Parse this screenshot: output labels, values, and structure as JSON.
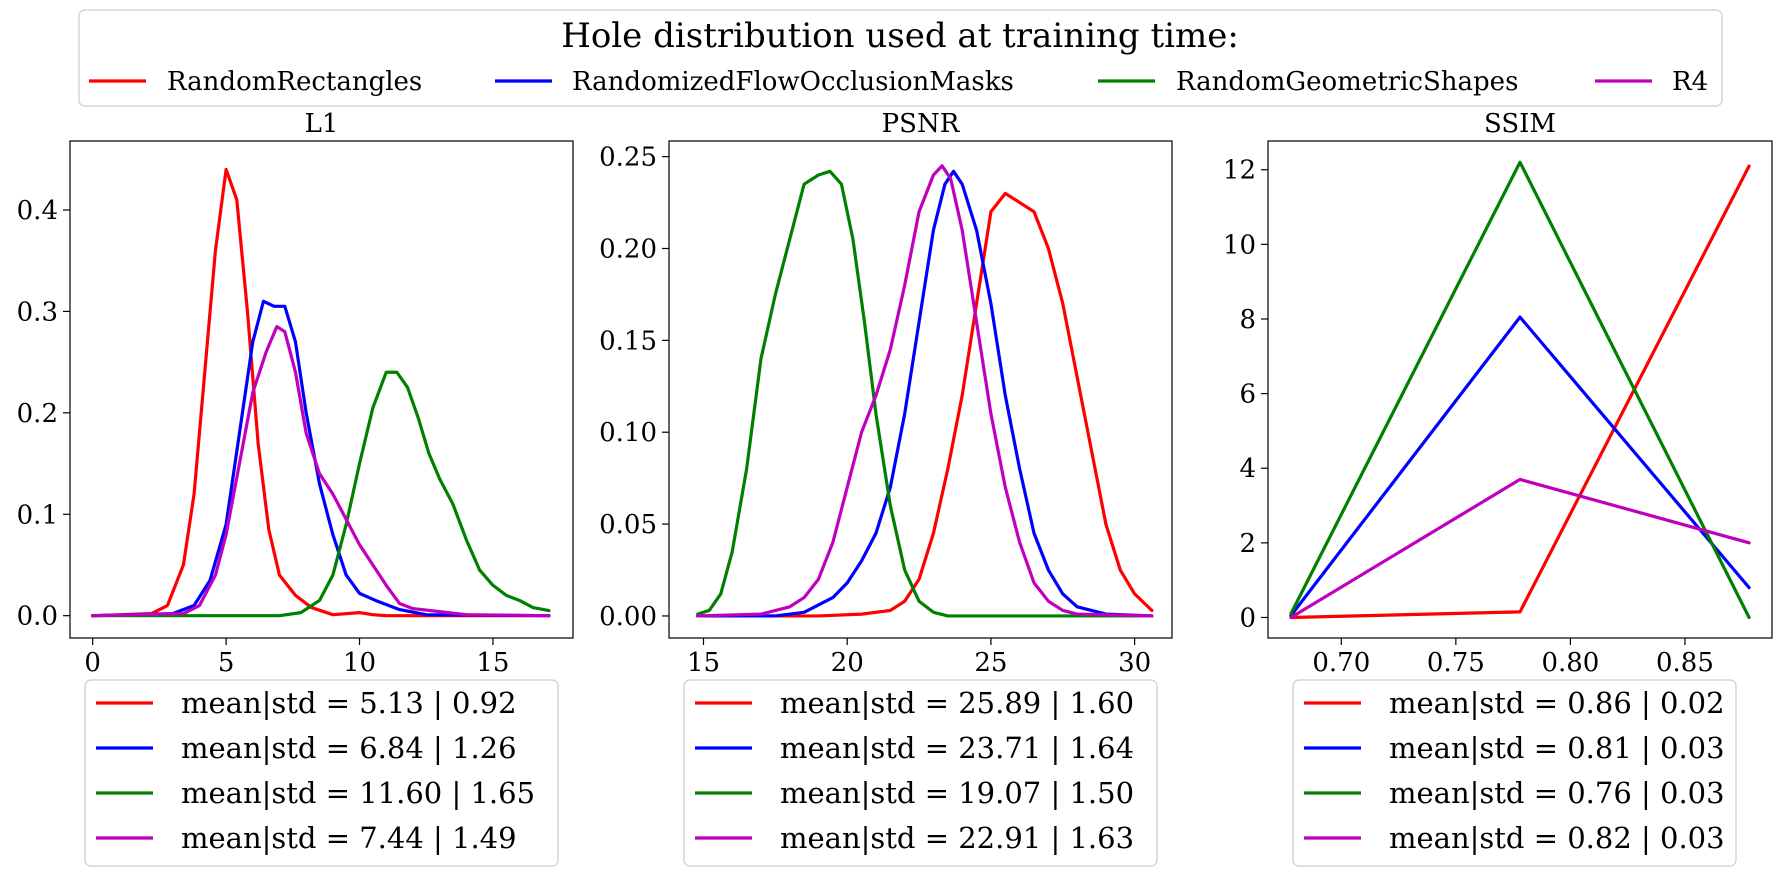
{
  "figure_legend": {
    "title": "Hole distribution used at training time:",
    "entries": [
      {
        "label": "RandomRectangles",
        "color": "#ff0000"
      },
      {
        "label": "RandomizedFlowOcclusionMasks",
        "color": "#0000ff"
      },
      {
        "label": "RandomGeometricShapes",
        "color": "#008000"
      },
      {
        "label": "R4",
        "color": "#bf00bf"
      }
    ]
  },
  "chart_data": [
    {
      "type": "line",
      "title": "L1",
      "xlim": [
        -0.85,
        18.0
      ],
      "ylim": [
        -0.022,
        0.468
      ],
      "xticks": [
        0,
        5,
        10,
        15
      ],
      "xtick_labels": [
        "0",
        "5",
        "10",
        "15"
      ],
      "yticks": [
        0.0,
        0.1,
        0.2,
        0.3,
        0.4
      ],
      "ytick_labels": [
        "0.0",
        "0.1",
        "0.2",
        "0.3",
        "0.4"
      ],
      "series": [
        {
          "name": "RandomRectangles",
          "color": "#ff0000",
          "legend": "mean|std = 5.13 | 0.92",
          "x": [
            0,
            2.2,
            2.8,
            3.4,
            3.8,
            4.2,
            4.6,
            5.0,
            5.4,
            5.8,
            6.2,
            6.6,
            7.0,
            7.6,
            8.2,
            9.0,
            10.0,
            10.5,
            11.0,
            17.1
          ],
          "y": [
            0,
            0.002,
            0.01,
            0.05,
            0.12,
            0.24,
            0.36,
            0.44,
            0.41,
            0.3,
            0.17,
            0.085,
            0.04,
            0.02,
            0.008,
            0.001,
            0.003,
            0.001,
            0,
            0
          ]
        },
        {
          "name": "RandomizedFlowOcclusionMasks",
          "color": "#0000ff",
          "legend": "mean|std = 6.84 | 1.26",
          "x": [
            0,
            3.0,
            3.8,
            4.4,
            5.0,
            5.5,
            6.0,
            6.4,
            6.8,
            7.2,
            7.6,
            8.0,
            8.5,
            9.0,
            9.5,
            10.0,
            10.6,
            11.5,
            12.5,
            17.1
          ],
          "y": [
            0,
            0.002,
            0.01,
            0.035,
            0.09,
            0.18,
            0.27,
            0.31,
            0.305,
            0.305,
            0.27,
            0.2,
            0.13,
            0.08,
            0.04,
            0.022,
            0.015,
            0.006,
            0.001,
            0
          ]
        },
        {
          "name": "RandomGeometricShapes",
          "color": "#008000",
          "legend": "mean|std = 11.60 | 1.65",
          "x": [
            0,
            7.0,
            7.8,
            8.5,
            9.0,
            9.5,
            10.0,
            10.5,
            11.0,
            11.4,
            11.8,
            12.2,
            12.6,
            13.0,
            13.5,
            14.0,
            14.5,
            15.0,
            15.5,
            16.0,
            16.5,
            17.1
          ],
          "y": [
            0,
            0,
            0.003,
            0.015,
            0.04,
            0.09,
            0.15,
            0.205,
            0.24,
            0.24,
            0.225,
            0.195,
            0.16,
            0.135,
            0.11,
            0.075,
            0.045,
            0.03,
            0.02,
            0.015,
            0.008,
            0.005
          ]
        },
        {
          "name": "R4",
          "color": "#bf00bf",
          "legend": "mean|std = 7.44 | 1.49",
          "x": [
            0,
            3.4,
            4.0,
            4.6,
            5.0,
            5.5,
            6.0,
            6.5,
            6.9,
            7.2,
            7.6,
            8.0,
            8.5,
            9.0,
            9.5,
            10.0,
            10.5,
            11.0,
            11.5,
            12.0,
            13.0,
            14.0,
            17.1
          ],
          "y": [
            0,
            0.002,
            0.01,
            0.04,
            0.08,
            0.15,
            0.22,
            0.26,
            0.285,
            0.28,
            0.24,
            0.18,
            0.14,
            0.12,
            0.095,
            0.07,
            0.05,
            0.03,
            0.012,
            0.007,
            0.004,
            0.001,
            0
          ]
        }
      ]
    },
    {
      "type": "line",
      "title": "PSNR",
      "xlim": [
        13.8,
        31.3
      ],
      "ylim": [
        -0.012,
        0.2585
      ],
      "xticks": [
        15,
        20,
        25,
        30
      ],
      "xtick_labels": [
        "15",
        "20",
        "25",
        "30"
      ],
      "yticks": [
        0.0,
        0.05,
        0.1,
        0.15,
        0.2,
        0.25
      ],
      "ytick_labels": [
        "0.00",
        "0.05",
        "0.10",
        "0.15",
        "0.20",
        "0.25"
      ],
      "series": [
        {
          "name": "RandomRectangles",
          "color": "#ff0000",
          "legend": "mean|std = 25.89 | 1.60",
          "x": [
            14.8,
            19.0,
            20.5,
            21.5,
            22.0,
            22.5,
            23.0,
            23.5,
            24.0,
            24.5,
            25.0,
            25.5,
            26.0,
            26.5,
            27.0,
            27.5,
            28.0,
            28.5,
            29.0,
            29.5,
            30.0,
            30.6
          ],
          "y": [
            0,
            0,
            0.001,
            0.003,
            0.008,
            0.02,
            0.045,
            0.08,
            0.12,
            0.17,
            0.22,
            0.23,
            0.225,
            0.22,
            0.2,
            0.17,
            0.13,
            0.09,
            0.05,
            0.025,
            0.012,
            0.003
          ]
        },
        {
          "name": "RandomizedFlowOcclusionMasks",
          "color": "#0000ff",
          "legend": "mean|std = 23.71 | 1.64",
          "x": [
            14.8,
            17.5,
            18.5,
            19.5,
            20.0,
            20.5,
            21.0,
            21.5,
            22.0,
            22.5,
            23.0,
            23.4,
            23.7,
            24.0,
            24.5,
            25.0,
            25.5,
            26.0,
            26.5,
            27.0,
            27.5,
            28.0,
            29.0,
            30.6
          ],
          "y": [
            0,
            0,
            0.002,
            0.01,
            0.018,
            0.03,
            0.045,
            0.07,
            0.11,
            0.16,
            0.21,
            0.235,
            0.242,
            0.235,
            0.21,
            0.17,
            0.12,
            0.08,
            0.045,
            0.025,
            0.012,
            0.005,
            0.001,
            0
          ]
        },
        {
          "name": "RandomGeometricShapes",
          "color": "#008000",
          "legend": "mean|std = 19.07 | 1.50",
          "x": [
            14.8,
            15.2,
            15.6,
            16.0,
            16.5,
            17.0,
            17.5,
            18.0,
            18.5,
            19.0,
            19.4,
            19.8,
            20.2,
            20.6,
            21.0,
            21.5,
            22.0,
            22.5,
            23.0,
            23.5,
            30.6
          ],
          "y": [
            0.001,
            0.003,
            0.012,
            0.035,
            0.08,
            0.14,
            0.175,
            0.205,
            0.235,
            0.24,
            0.242,
            0.235,
            0.205,
            0.16,
            0.11,
            0.06,
            0.025,
            0.008,
            0.002,
            0,
            0
          ]
        },
        {
          "name": "R4",
          "color": "#bf00bf",
          "legend": "mean|std = 22.91 | 1.63",
          "x": [
            14.8,
            17.0,
            18.0,
            18.5,
            19.0,
            19.5,
            20.0,
            20.5,
            21.0,
            21.5,
            22.0,
            22.5,
            23.0,
            23.3,
            23.6,
            24.0,
            24.5,
            25.0,
            25.5,
            26.0,
            26.5,
            27.0,
            27.5,
            28.0,
            30.6
          ],
          "y": [
            0,
            0.001,
            0.005,
            0.01,
            0.02,
            0.04,
            0.07,
            0.1,
            0.12,
            0.145,
            0.18,
            0.22,
            0.24,
            0.245,
            0.238,
            0.21,
            0.16,
            0.11,
            0.07,
            0.04,
            0.018,
            0.008,
            0.003,
            0.001,
            0
          ]
        }
      ]
    },
    {
      "type": "line",
      "title": "SSIM",
      "xlim": [
        0.668,
        0.888
      ],
      "ylim": [
        -0.55,
        12.77
      ],
      "xticks": [
        0.7,
        0.75,
        0.8,
        0.85
      ],
      "xtick_labels": [
        "0.70",
        "0.75",
        "0.80",
        "0.85"
      ],
      "yticks": [
        0,
        2,
        4,
        6,
        8,
        10,
        12
      ],
      "ytick_labels": [
        "0",
        "2",
        "4",
        "6",
        "8",
        "10",
        "12"
      ],
      "series": [
        {
          "name": "RandomRectangles",
          "color": "#ff0000",
          "legend": "mean|std = 0.86 | 0.02",
          "x": [
            0.678,
            0.778,
            0.878
          ],
          "y": [
            0.0,
            0.15,
            12.1
          ]
        },
        {
          "name": "RandomizedFlowOcclusionMasks",
          "color": "#0000ff",
          "legend": "mean|std = 0.81 | 0.03",
          "x": [
            0.678,
            0.778,
            0.878
          ],
          "y": [
            0.05,
            8.05,
            0.8
          ]
        },
        {
          "name": "RandomGeometricShapes",
          "color": "#008000",
          "legend": "mean|std = 0.76 | 0.03",
          "x": [
            0.678,
            0.778,
            0.878
          ],
          "y": [
            0.1,
            12.2,
            0.0
          ]
        },
        {
          "name": "R4",
          "color": "#bf00bf",
          "legend": "mean|std = 0.82 | 0.03",
          "x": [
            0.678,
            0.778,
            0.878
          ],
          "y": [
            0.0,
            3.7,
            2.0
          ]
        }
      ]
    }
  ]
}
